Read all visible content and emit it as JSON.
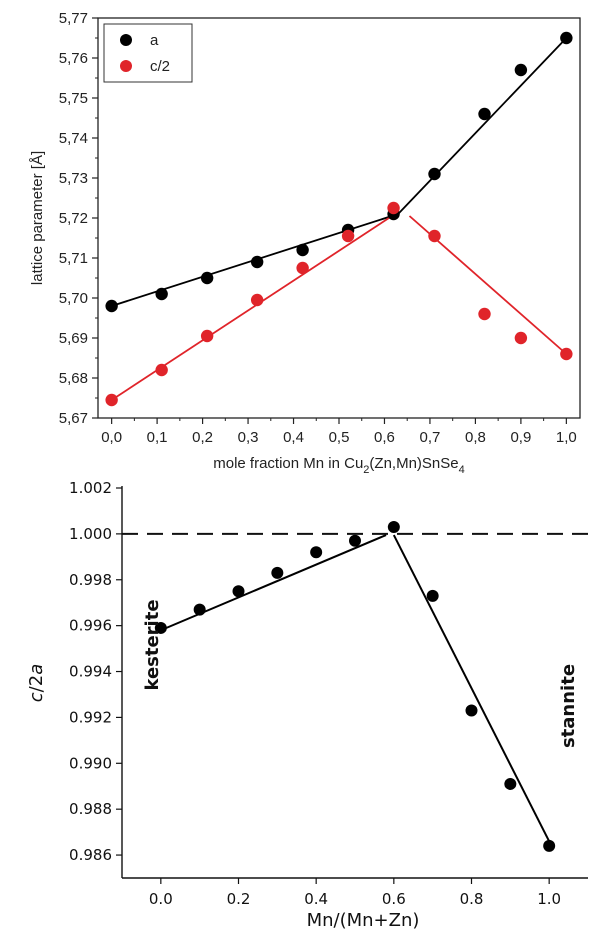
{
  "chart_data": [
    {
      "type": "scatter",
      "xlabel_parts": [
        "mole fraction Mn in Cu",
        "2",
        "(Zn,Mn)SnSe",
        "4"
      ],
      "ylabel": "lattice parameter  [Å]",
      "xlim": [
        -0.03,
        1.03
      ],
      "ylim": [
        5.67,
        5.77
      ],
      "xticks": [
        "0,0",
        "0,1",
        "0,2",
        "0,3",
        "0,4",
        "0,5",
        "0,6",
        "0,7",
        "0,8",
        "0,9",
        "1,0"
      ],
      "yticks": [
        "5,67",
        "5,68",
        "5,69",
        "5,70",
        "5,71",
        "5,72",
        "5,73",
        "5,74",
        "5,75",
        "5,76",
        "5,77"
      ],
      "legend": "top-left",
      "series": [
        {
          "name": "a",
          "color": "#000000",
          "x": [
            0.0,
            0.11,
            0.21,
            0.32,
            0.42,
            0.52,
            0.62,
            0.71,
            0.82,
            0.9,
            1.0
          ],
          "y": [
            5.698,
            5.701,
            5.705,
            5.709,
            5.712,
            5.717,
            5.721,
            5.731,
            5.746,
            5.757,
            5.765
          ],
          "fit": [
            [
              [
                0.0,
                5.698
              ],
              [
                0.63,
                5.721
              ]
            ],
            [
              [
                0.63,
                5.721
              ],
              [
                1.0,
                5.765
              ]
            ]
          ]
        },
        {
          "name": "c/2",
          "color": "#e0242a",
          "x": [
            0.0,
            0.11,
            0.21,
            0.32,
            0.42,
            0.52,
            0.62,
            0.71,
            0.82,
            0.9,
            1.0
          ],
          "y": [
            5.6745,
            5.682,
            5.6905,
            5.6995,
            5.7075,
            5.7155,
            5.7225,
            5.7155,
            5.696,
            5.69,
            5.686
          ],
          "fit": [
            [
              [
                0.0,
                5.6745
              ],
              [
                0.63,
                5.7215
              ]
            ],
            [
              [
                0.655,
                5.7205
              ],
              [
                1.0,
                5.686
              ]
            ]
          ]
        }
      ]
    },
    {
      "type": "scatter",
      "xlabel": "Mn/(Mn+Zn)",
      "ylabel_parts": [
        "c",
        "/2",
        "a"
      ],
      "xlim": [
        -0.1,
        1.1
      ],
      "ylim": [
        0.985,
        1.002
      ],
      "xticks": [
        "0.0",
        "0.2",
        "0.4",
        "0.6",
        "0.8",
        "1.0"
      ],
      "yticks": [
        "0.986",
        "0.988",
        "0.990",
        "0.992",
        "0.994",
        "0.996",
        "0.998",
        "1.000",
        "1.002"
      ],
      "reference_line": 1.0,
      "annotations": [
        "kesterite",
        "stannite"
      ],
      "series": [
        {
          "color": "#000000",
          "x": [
            0.0,
            0.1,
            0.2,
            0.3,
            0.4,
            0.5,
            0.6,
            0.7,
            0.8,
            0.9,
            1.0
          ],
          "y": [
            0.9959,
            0.9967,
            0.9975,
            0.9983,
            0.9992,
            0.9997,
            1.0003,
            0.9973,
            0.9923,
            0.9891,
            0.9864
          ],
          "fit": [
            [
              [
                0.0,
                0.9958
              ],
              [
                0.58,
                0.99995
              ]
            ],
            [
              [
                0.6,
                0.99995
              ],
              [
                1.0,
                0.9866
              ]
            ]
          ]
        }
      ]
    }
  ]
}
